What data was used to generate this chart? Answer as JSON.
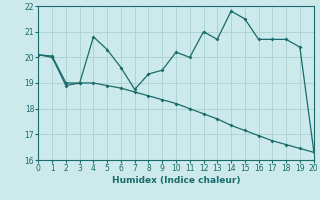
{
  "xlabel": "Humidex (Indice chaleur)",
  "background_color": "#cce9eb",
  "grid_color": "#aed4d6",
  "line_color": "#1a6b6b",
  "x_values": [
    0,
    1,
    2,
    3,
    4,
    5,
    6,
    7,
    8,
    9,
    10,
    11,
    12,
    13,
    14,
    15,
    16,
    17,
    18,
    19,
    20
  ],
  "line1_y": [
    20.1,
    20.0,
    18.9,
    19.0,
    20.8,
    20.3,
    19.6,
    18.75,
    19.35,
    19.5,
    20.2,
    20.0,
    21.0,
    20.7,
    21.8,
    21.5,
    20.7,
    20.7,
    20.7,
    20.4,
    16.4
  ],
  "line2_y": [
    20.1,
    20.05,
    19.0,
    19.0,
    19.0,
    18.9,
    18.8,
    18.65,
    18.5,
    18.35,
    18.2,
    18.0,
    17.8,
    17.6,
    17.35,
    17.15,
    16.95,
    16.75,
    16.6,
    16.45,
    16.3
  ],
  "ylim": [
    16,
    22
  ],
  "xlim": [
    0,
    20
  ],
  "yticks": [
    16,
    17,
    18,
    19,
    20,
    21,
    22
  ],
  "xticks": [
    0,
    1,
    2,
    3,
    4,
    5,
    6,
    7,
    8,
    9,
    10,
    11,
    12,
    13,
    14,
    15,
    16,
    17,
    18,
    19,
    20
  ]
}
